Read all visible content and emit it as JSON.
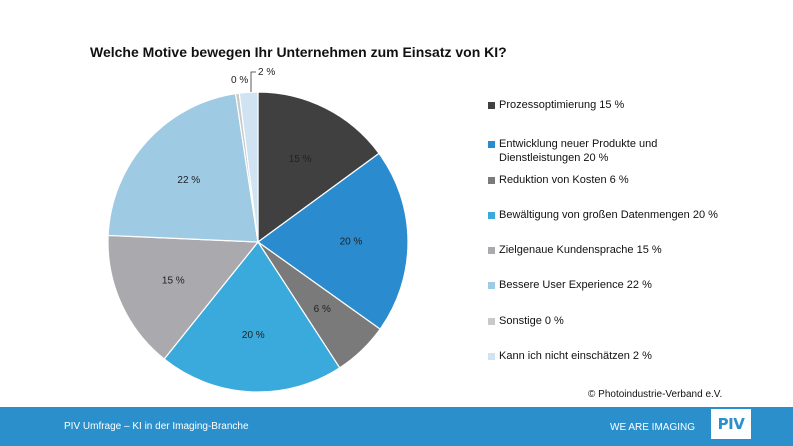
{
  "chart_data": {
    "type": "pie",
    "title": "Welche Motive bewegen Ihr Unternehmen zum Einsatz von KI?",
    "slices": [
      {
        "label": "Prozessoptimierung 15 %",
        "value": 15,
        "value_label": "15 %",
        "color": "#404040"
      },
      {
        "label": "Entwicklung neuer Produkte und Dienstleistungen 20 %",
        "value": 20,
        "value_label": "20 %",
        "color": "#2a8ccf"
      },
      {
        "label": "Reduktion von Kosten 6 %",
        "value": 6,
        "value_label": "6 %",
        "color": "#7a7a7a"
      },
      {
        "label": "Bewältigung von großen Datenmengen 20 %",
        "value": 20,
        "value_label": "20 %",
        "color": "#3aaadc"
      },
      {
        "label": "Zielgenaue Kundensprache 15 %",
        "value": 15,
        "value_label": "15 %",
        "color": "#a9a9ae"
      },
      {
        "label": "Bessere User Experience 22 %",
        "value": 22,
        "value_label": "22 %",
        "color": "#9ecae3"
      },
      {
        "label": "Sonstige 0 %",
        "value": 0.4,
        "value_label": "0 %",
        "color": "#c9c9c9"
      },
      {
        "label": "Kann ich nicht einschätzen 2 %",
        "value": 2,
        "value_label": "2 %",
        "color": "#cfe3f2"
      }
    ],
    "legend_position": "right"
  },
  "copyright": "© Photoindustrie-Verband e.V.",
  "footer": {
    "left_text": "PIV Umfrage – KI in der Imaging-Branche",
    "right_text": "WE ARE IMAGING",
    "logo_text": "PIV"
  }
}
